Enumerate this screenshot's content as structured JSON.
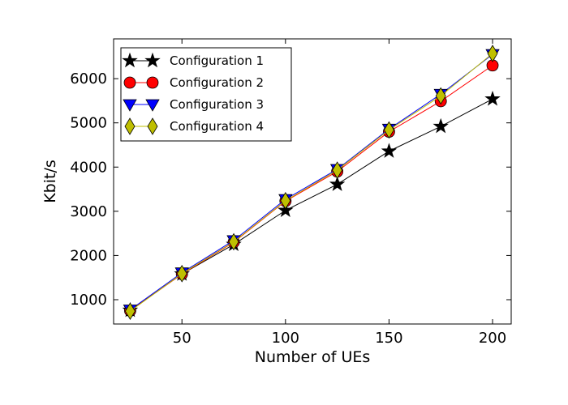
{
  "chart_data": {
    "type": "line",
    "title": "",
    "xlabel": "Number of UEs",
    "ylabel": "Kbit/s",
    "xlim": [
      17,
      209
    ],
    "ylim": [
      450,
      6900
    ],
    "xticks": [
      50,
      100,
      150,
      200
    ],
    "yticks": [
      1000,
      2000,
      3000,
      4000,
      5000,
      6000
    ],
    "grid": false,
    "legend_position": "upper-left",
    "x": [
      25,
      50,
      75,
      100,
      125,
      150,
      175,
      200
    ],
    "series": [
      {
        "name": "Configuration 1",
        "color": "#000000",
        "marker": "star",
        "values": [
          760,
          1580,
          2250,
          3020,
          3610,
          4360,
          4920,
          5540
        ]
      },
      {
        "name": "Configuration 2",
        "color": "#ff0000",
        "marker": "circle",
        "values": [
          750,
          1580,
          2300,
          3230,
          3900,
          4800,
          5490,
          6300
        ]
      },
      {
        "name": "Configuration 3",
        "color": "#0000ff",
        "marker": "triangle-down",
        "values": [
          770,
          1610,
          2340,
          3270,
          3950,
          4860,
          5650,
          6550
        ]
      },
      {
        "name": "Configuration 4",
        "color": "#bfbf00",
        "marker": "diamond",
        "values": [
          740,
          1590,
          2310,
          3240,
          3930,
          4840,
          5610,
          6570
        ]
      }
    ]
  }
}
